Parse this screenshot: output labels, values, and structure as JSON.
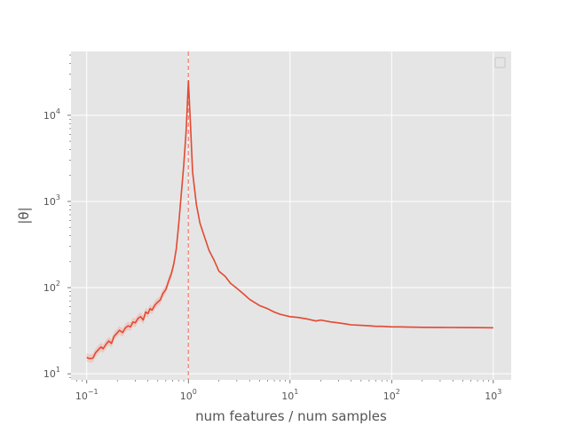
{
  "chart_data": {
    "type": "line",
    "xlabel": "num features / num samples",
    "ylabel": "|θ|",
    "xscale": "log",
    "yscale": "log",
    "xlim": [
      0.07,
      1500
    ],
    "ylim": [
      8.5,
      55000
    ],
    "grid": true,
    "legend": "top-right (empty)",
    "x_ticks": [
      {
        "value": 0.1,
        "base": "10",
        "exp": "−1"
      },
      {
        "value": 1,
        "base": "10",
        "exp": "0"
      },
      {
        "value": 10,
        "base": "10",
        "exp": "1"
      },
      {
        "value": 100,
        "base": "10",
        "exp": "2"
      },
      {
        "value": 1000,
        "base": "10",
        "exp": "3"
      }
    ],
    "y_ticks": [
      {
        "value": 10,
        "base": "10",
        "exp": "1"
      },
      {
        "value": 100,
        "base": "10",
        "exp": "2"
      },
      {
        "value": 1000,
        "base": "10",
        "exp": "3"
      },
      {
        "value": 10000,
        "base": "10",
        "exp": "4"
      }
    ],
    "vline": {
      "x": 1,
      "color": "#f08b80",
      "style": "dashed"
    },
    "series": [
      {
        "color": "#e24a33",
        "band_color": "#f0b4aa",
        "x": [
          0.1,
          0.107,
          0.115,
          0.122,
          0.13,
          0.138,
          0.145,
          0.155,
          0.165,
          0.175,
          0.185,
          0.195,
          0.21,
          0.225,
          0.24,
          0.255,
          0.27,
          0.285,
          0.3,
          0.32,
          0.34,
          0.36,
          0.38,
          0.4,
          0.42,
          0.44,
          0.47,
          0.5,
          0.53,
          0.56,
          0.6,
          0.64,
          0.68,
          0.72,
          0.76,
          0.8,
          0.85,
          0.9,
          0.95,
          1.0,
          1.05,
          1.1,
          1.2,
          1.3,
          1.45,
          1.6,
          1.8,
          2.0,
          2.3,
          2.6,
          3.0,
          3.5,
          4.0,
          5.0,
          6.0,
          7.0,
          8.0,
          10,
          12,
          15,
          18,
          20,
          25,
          30,
          35,
          40,
          50,
          60,
          70,
          80,
          100,
          120,
          150,
          200,
          300,
          500,
          700,
          1000
        ],
        "y": [
          15.5,
          15,
          15.2,
          17.5,
          19,
          20.5,
          19.5,
          22,
          24,
          22.5,
          27,
          29,
          32,
          30,
          34,
          36,
          35,
          40,
          39,
          44,
          46,
          42,
          52,
          50,
          57,
          55,
          63,
          68,
          72,
          85,
          95,
          120,
          145,
          190,
          280,
          520,
          1200,
          2600,
          6500,
          25000,
          7500,
          2200,
          920,
          560,
          380,
          270,
          205,
          155,
          135,
          112,
          98,
          84,
          73,
          62,
          57,
          52,
          49,
          46,
          45,
          43,
          41,
          42,
          40,
          39,
          38,
          37,
          36.5,
          36,
          35.5,
          35.5,
          35,
          35,
          34.8,
          34.6,
          34.5,
          34.4,
          34.3,
          34.2
        ]
      }
    ]
  }
}
